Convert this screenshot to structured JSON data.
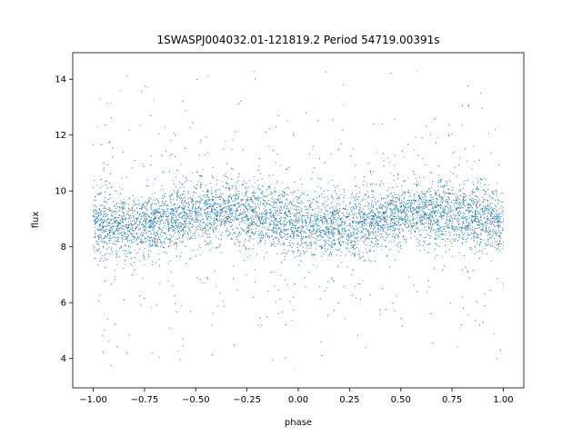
{
  "chart_data": {
    "type": "scatter",
    "title": "1SWASPJ004032.01-121819.2 Period 54719.00391s",
    "xlabel": "phase",
    "ylabel": "flux",
    "xlim": [
      -1.1,
      1.1
    ],
    "ylim": [
      2.95,
      14.95
    ],
    "x_ticks": [
      -1.0,
      -0.75,
      -0.5,
      -0.25,
      0.0,
      0.25,
      0.5,
      0.75,
      1.0
    ],
    "x_tick_labels": [
      "−1.00",
      "−0.75",
      "−0.50",
      "−0.25",
      "0.00",
      "0.25",
      "0.50",
      "0.75",
      "1.00"
    ],
    "y_ticks": [
      4,
      6,
      8,
      10,
      12,
      14
    ],
    "y_tick_labels": [
      "4",
      "6",
      "8",
      "10",
      "12",
      "14"
    ],
    "grid": false,
    "marker_color": "#1f77b4",
    "series": [
      {
        "x_range": [
          -1.0,
          1.0
        ],
        "y_range": [
          3.5,
          14.7
        ],
        "mean_flux": 9.0,
        "core_flux_range": [
          8.0,
          10.0
        ],
        "points": [
          [
            -1.0,
            9.1
          ],
          [
            -0.95,
            8.9
          ],
          [
            -0.9,
            9.0
          ],
          [
            -0.85,
            9.2
          ],
          [
            -0.8,
            8.8
          ],
          [
            -0.75,
            9.1
          ],
          [
            -0.7,
            9.3
          ],
          [
            -0.65,
            9.2
          ],
          [
            -0.6,
            9.4
          ],
          [
            -0.55,
            9.1
          ],
          [
            -0.5,
            9.0
          ],
          [
            -0.45,
            9.2
          ],
          [
            -0.4,
            9.1
          ],
          [
            -0.35,
            8.9
          ],
          [
            -0.3,
            9.0
          ],
          [
            -0.25,
            8.8
          ],
          [
            -0.2,
            8.9
          ],
          [
            -0.15,
            8.7
          ],
          [
            -0.1,
            8.8
          ],
          [
            -0.05,
            8.6
          ],
          [
            0.0,
            8.7
          ],
          [
            0.05,
            8.8
          ],
          [
            0.1,
            8.9
          ],
          [
            0.15,
            9.0
          ],
          [
            0.2,
            9.1
          ],
          [
            0.25,
            9.2
          ],
          [
            0.3,
            9.3
          ],
          [
            0.35,
            9.2
          ],
          [
            0.4,
            9.4
          ],
          [
            0.45,
            9.1
          ],
          [
            0.5,
            9.0
          ],
          [
            0.55,
            9.1
          ],
          [
            0.6,
            9.0
          ],
          [
            0.65,
            8.9
          ],
          [
            0.7,
            9.1
          ],
          [
            0.75,
            9.0
          ],
          [
            0.8,
            8.8
          ],
          [
            0.85,
            8.9
          ],
          [
            0.9,
            8.9
          ],
          [
            0.95,
            9.0
          ],
          [
            1.0,
            8.9
          ],
          [
            -0.98,
            12.3
          ],
          [
            -0.62,
            11.8
          ],
          [
            -0.31,
            12.1
          ],
          [
            0.07,
            11.5
          ],
          [
            0.41,
            12.4
          ],
          [
            0.68,
            11.9
          ],
          [
            0.96,
            12.2
          ],
          [
            -0.87,
            13.6
          ],
          [
            -0.44,
            14.1
          ],
          [
            0.22,
            13.8
          ],
          [
            0.58,
            14.3
          ],
          [
            0.89,
            13.5
          ],
          [
            -0.93,
            5.4
          ],
          [
            -0.57,
            5.9
          ],
          [
            -0.18,
            5.2
          ],
          [
            0.11,
            4.6
          ],
          [
            0.47,
            5.7
          ],
          [
            0.79,
            5.1
          ],
          [
            -0.71,
            4.2
          ],
          [
            -0.02,
            3.6
          ],
          [
            0.33,
            4.4
          ],
          [
            0.97,
            4.0
          ],
          [
            -0.4,
            6.6
          ],
          [
            0.63,
            6.4
          ],
          [
            -0.12,
            7.1
          ]
        ]
      }
    ]
  }
}
